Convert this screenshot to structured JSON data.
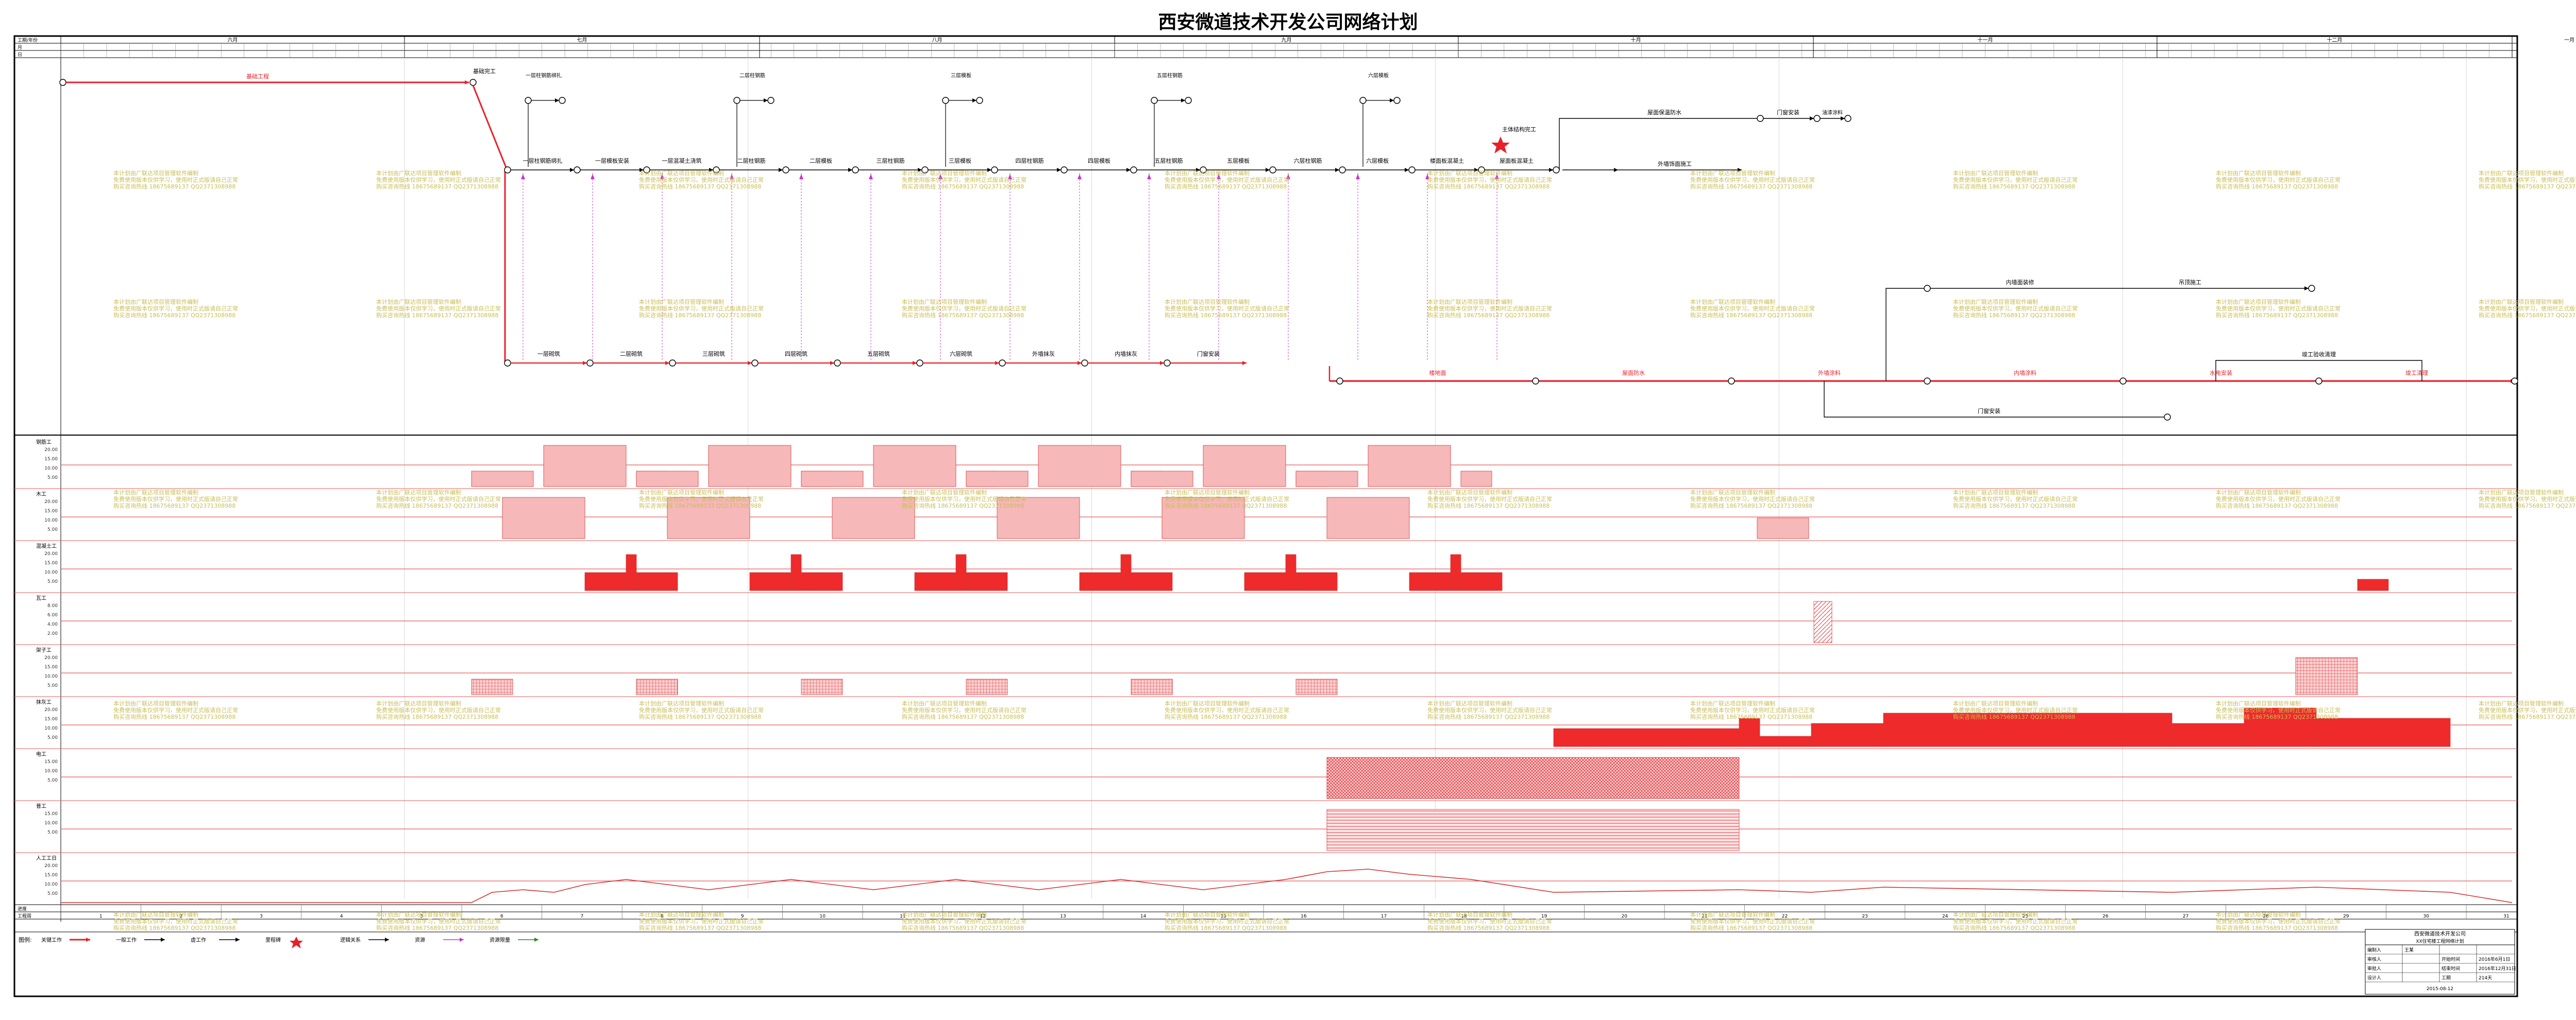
{
  "title": "西安微道技术开发公司网络计划",
  "header": {
    "row_labels": [
      "工期/年份",
      "月",
      "日"
    ],
    "months": [
      "六月",
      "七月",
      "八月",
      "九月",
      "十月",
      "十一月",
      "十二月",
      "一月"
    ]
  },
  "milestones": {
    "start": "基础完工",
    "finish": "主体结构完工"
  },
  "upper_tasks": [
    "一层柱钢筋绑扎",
    "一层模板安装",
    "一层混凝土浇筑",
    "二层柱钢筋",
    "二层模板",
    "三层柱钢筋",
    "三层模板",
    "四层柱钢筋",
    "四层模板",
    "五层柱钢筋",
    "五层模板",
    "六层柱钢筋",
    "六层模板",
    "楼面板混凝土",
    "屋面板混凝土"
  ],
  "lower_tasks": [
    "一层砌筑",
    "二层砌筑",
    "三层砌筑",
    "四层砌筑",
    "五层砌筑",
    "六层砌筑",
    "外墙抹灰",
    "内墙抹灰",
    "门窗安装",
    "楼地面",
    "屋面防水",
    "外墙涂料",
    "内墙涂料",
    "水电安装",
    "竣工清理"
  ],
  "branch_labels": {
    "roof": "屋面保温防水",
    "facade": "外墙饰面施工",
    "interior": "内墙面装修",
    "ceiling": "吊顶施工",
    "door": "门窗安装",
    "paint": "油漆涂料",
    "clean": "竣工验收清理"
  },
  "resources": [
    {
      "label": "钢筋工",
      "ticks": [
        "20.00",
        "15.00",
        "10.00",
        "5.00"
      ]
    },
    {
      "label": "木工",
      "ticks": [
        "20.00",
        "15.00",
        "10.00",
        "5.00"
      ]
    },
    {
      "label": "混凝土工",
      "ticks": [
        "20.00",
        "15.00",
        "10.00",
        "5.00"
      ]
    },
    {
      "label": "瓦工",
      "ticks": [
        "8.00",
        "6.00",
        "4.00",
        "2.00"
      ]
    },
    {
      "label": "架子工",
      "ticks": [
        "20.00",
        "15.00",
        "10.00",
        "5.00"
      ]
    },
    {
      "label": "抹灰工",
      "ticks": [
        "20.00",
        "15.00",
        "10.00",
        "5.00"
      ]
    },
    {
      "label": "电工",
      "ticks": [
        "15.00",
        "10.00",
        "5.00"
      ]
    },
    {
      "label": "普工",
      "ticks": [
        "15.00",
        "10.00",
        "5.00"
      ]
    },
    {
      "label": "人工工日",
      "ticks": [
        "20.00",
        "15.00",
        "10.00",
        "5.00"
      ]
    }
  ],
  "bottom_rows": [
    "进度",
    "工程周"
  ],
  "legend": {
    "label": "图例:",
    "items": [
      "关键工作",
      "一般工作",
      "虚工作",
      "里程碑",
      "逻辑关系",
      "资源",
      "资源限量"
    ]
  },
  "title_block": {
    "company": "西安微道技术开发公司",
    "project": "XX住宅楼工程网络计划",
    "rows": [
      [
        "编制人",
        "王某",
        "",
        ""
      ],
      [
        "审核人",
        "",
        "开始时间",
        "2016年6月1日"
      ],
      [
        "审批人",
        "",
        "结束时间",
        "2016年12月31日"
      ],
      [
        "设计人",
        "",
        "工期",
        "214天"
      ]
    ],
    "date": "2015-08-12"
  },
  "watermark": {
    "line1": "本计划由广联达项目管理软件编制",
    "line2": "免费使用版本仅供学习，使用时正式版请自己正常",
    "line3": "购买咨询热线 18675689137 QQ2371308988"
  },
  "colors": {
    "critical": "#e8202a",
    "normal": "#000000",
    "dummy": "#cc33cc",
    "grid": "#e35a5a",
    "res_light": "#f6b8b8",
    "res_dark": "#ee2a2a",
    "watermark": "#c9bd55"
  }
}
